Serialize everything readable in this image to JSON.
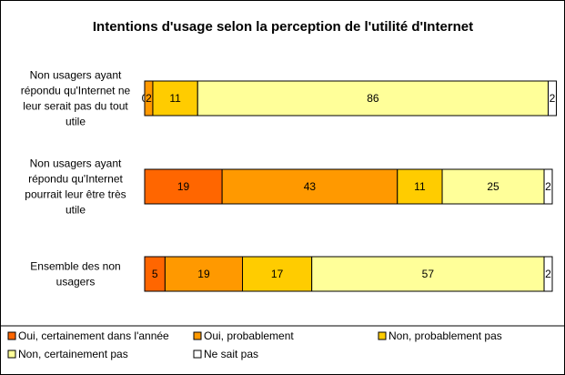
{
  "chart_data": {
    "type": "bar",
    "orientation": "horizontal",
    "stacked": "100%",
    "title": "Intentions d'usage  selon la perception de l'utilité d'Internet",
    "categories": [
      [
        "Non usagers ayant",
        "répondu qu'Internet ne",
        "leur serait pas du tout",
        "utile"
      ],
      [
        "Non usagers ayant",
        "répondu qu'Internet",
        "pourrait leur être très",
        "utile"
      ],
      [
        "Ensemble des non",
        "usagers"
      ]
    ],
    "series": [
      {
        "name": "Oui, certainement dans l'année",
        "color": "#FF6600",
        "values": [
          0,
          19,
          5
        ]
      },
      {
        "name": "Oui, probablement",
        "color": "#FF9900",
        "values": [
          2,
          43,
          19
        ]
      },
      {
        "name": "Non, probablement pas",
        "color": "#FFCC00",
        "values": [
          11,
          11,
          17
        ]
      },
      {
        "name": "Non, certainement pas",
        "color": "#FFFF99",
        "values": [
          86,
          25,
          57
        ]
      },
      {
        "name": "Ne sait pas",
        "color": "#FFFFFF",
        "values": [
          2,
          2,
          2
        ]
      }
    ],
    "xlim": [
      0,
      100
    ],
    "grid": false,
    "legend_position": "bottom"
  }
}
